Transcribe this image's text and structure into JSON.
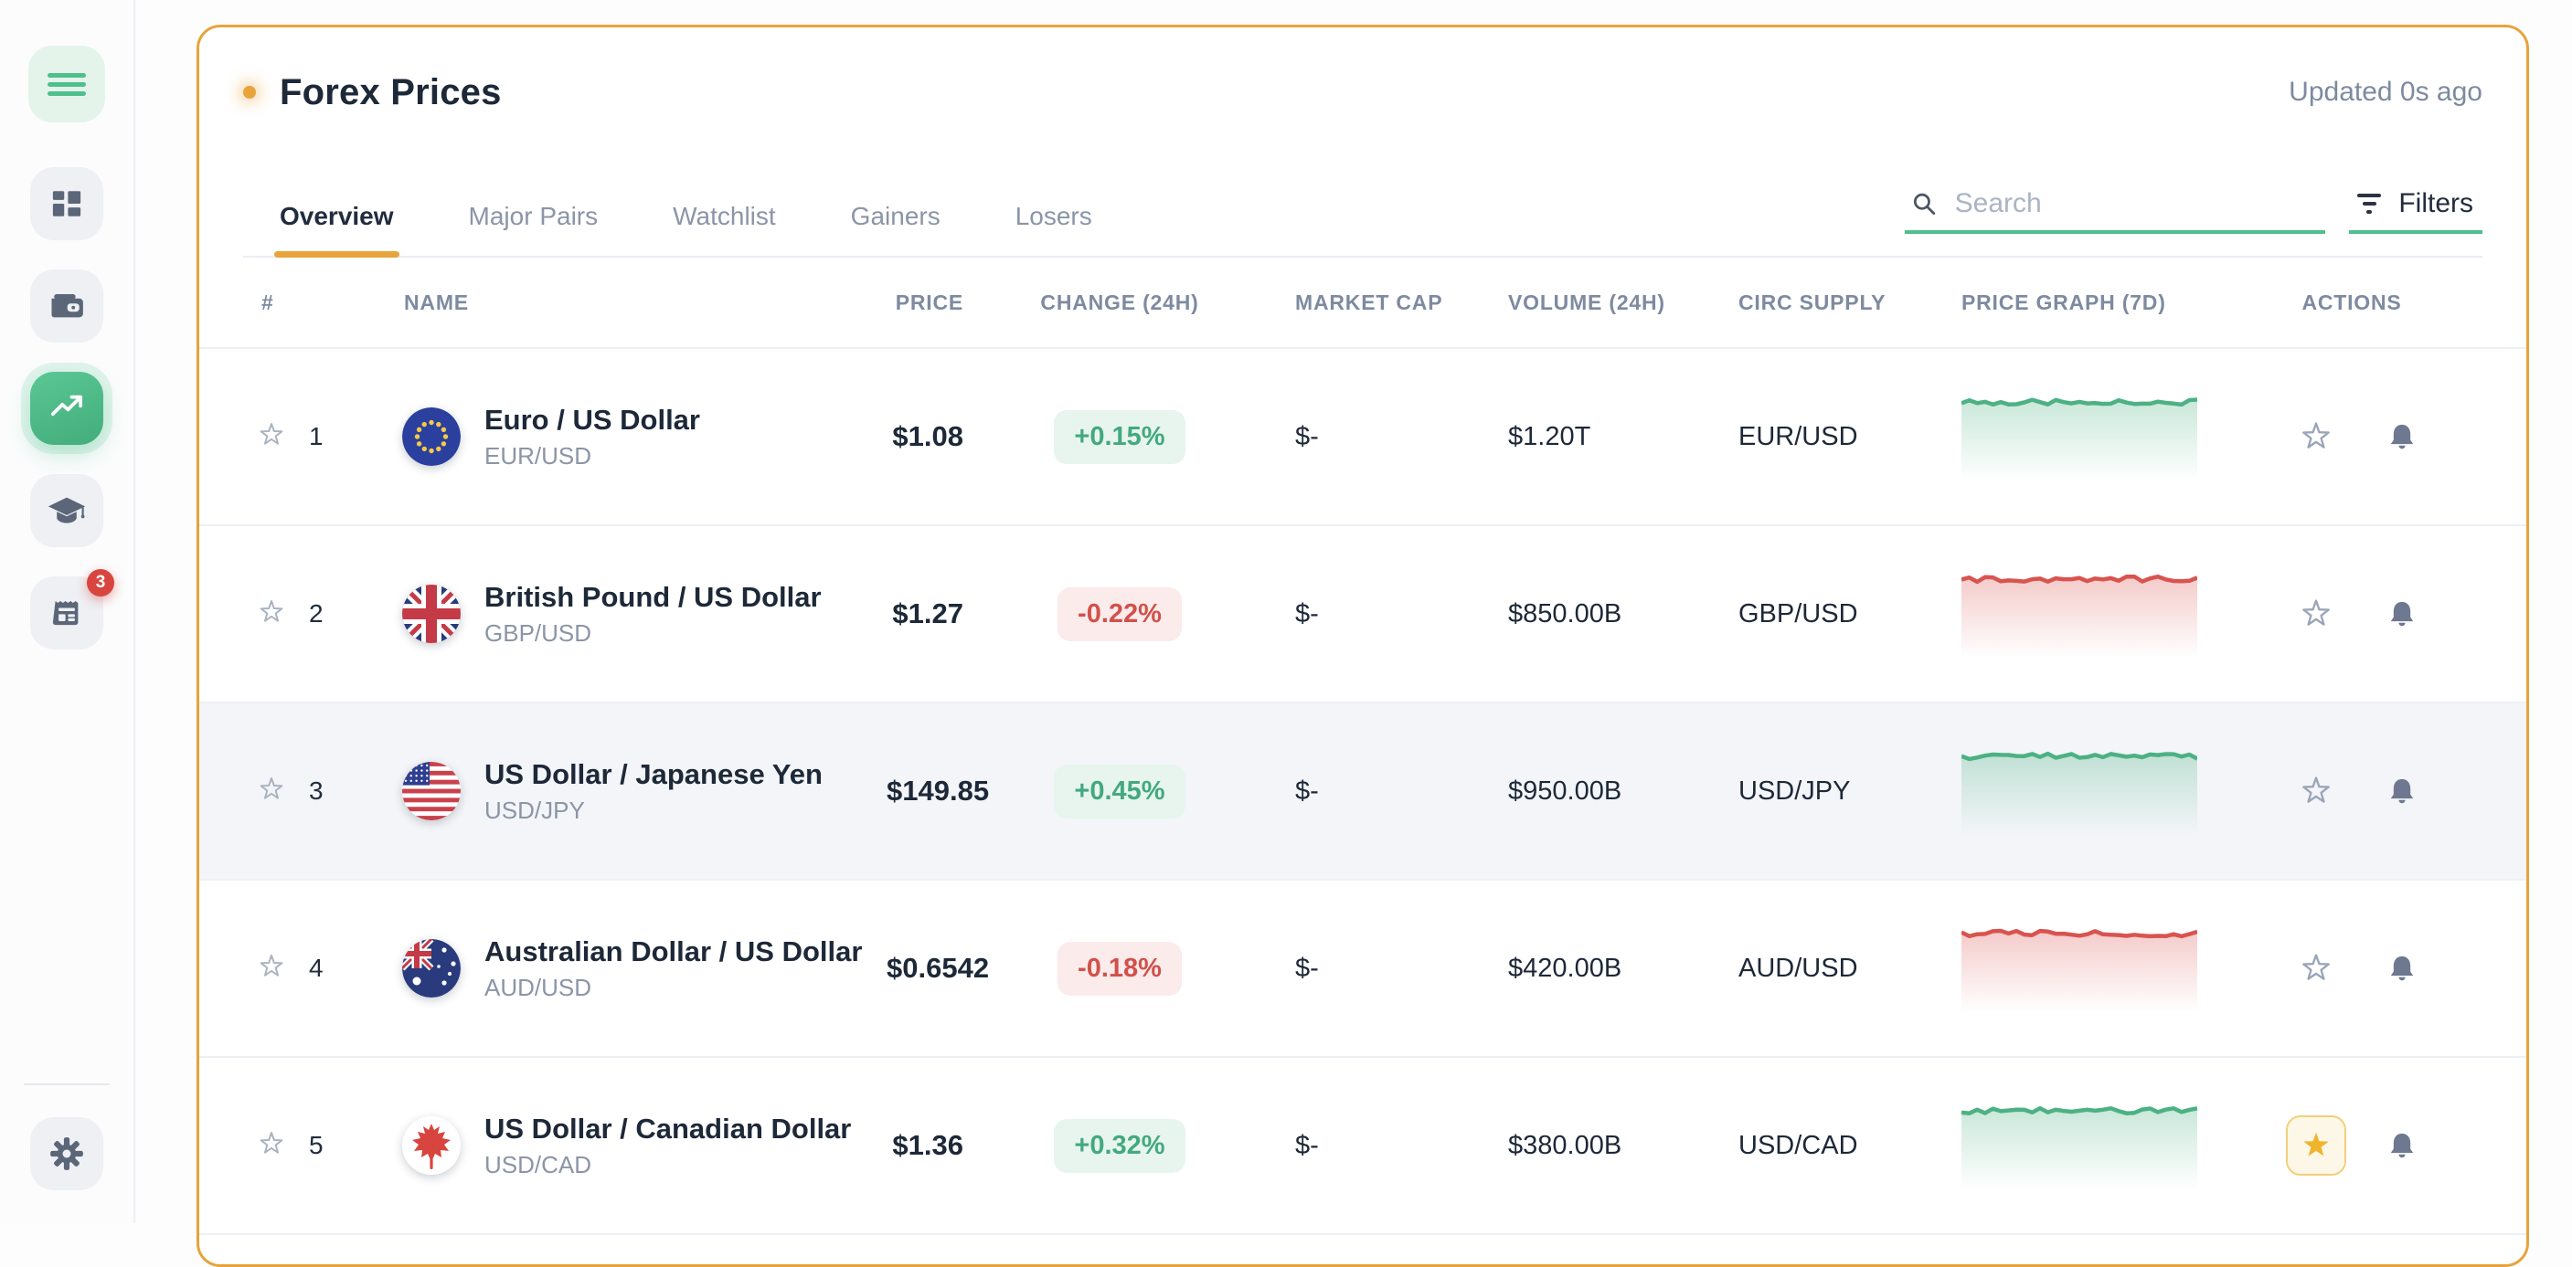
{
  "sidebar": {
    "menu": {
      "icon": "hamburger-icon"
    },
    "items": [
      {
        "name": "dashboard",
        "icon": "grid-icon",
        "active": false
      },
      {
        "name": "wallet",
        "icon": "wallet-icon",
        "active": false
      },
      {
        "name": "markets",
        "icon": "trending-up-icon",
        "active": true
      },
      {
        "name": "education",
        "icon": "graduation-cap-icon",
        "active": false
      },
      {
        "name": "news",
        "icon": "news-icon",
        "active": false,
        "badge": "3"
      }
    ],
    "settings": {
      "icon": "gear-icon"
    }
  },
  "panel": {
    "title": "Forex Prices",
    "updated": "Updated 0s ago",
    "tabs": [
      {
        "label": "Overview",
        "active": true
      },
      {
        "label": "Major Pairs",
        "active": false
      },
      {
        "label": "Watchlist",
        "active": false
      },
      {
        "label": "Gainers",
        "active": false
      },
      {
        "label": "Losers",
        "active": false
      }
    ],
    "search_placeholder": "Search",
    "filters_label": "Filters"
  },
  "table": {
    "columns": [
      "#",
      "NAME",
      "PRICE",
      "CHANGE (24H)",
      "MARKET CAP",
      "VOLUME (24H)",
      "CIRC SUPPLY",
      "PRICE GRAPH (7D)",
      "ACTIONS"
    ],
    "rows": [
      {
        "rank": "1",
        "name": "Euro / US Dollar",
        "symbol": "EUR/USD",
        "price": "$1.08",
        "change": "+0.15%",
        "change_dir": "up",
        "market_cap": "$-",
        "volume": "$1.20T",
        "circ_supply": "EUR/USD",
        "trend": "up",
        "flag": "eu",
        "starred": false,
        "highlighted": false
      },
      {
        "rank": "2",
        "name": "British Pound / US Dollar",
        "symbol": "GBP/USD",
        "price": "$1.27",
        "change": "-0.22%",
        "change_dir": "down",
        "market_cap": "$-",
        "volume": "$850.00B",
        "circ_supply": "GBP/USD",
        "trend": "down",
        "flag": "gb",
        "starred": false,
        "highlighted": false
      },
      {
        "rank": "3",
        "name": "US Dollar / Japanese Yen",
        "symbol": "USD/JPY",
        "price": "$149.85",
        "change": "+0.45%",
        "change_dir": "up",
        "market_cap": "$-",
        "volume": "$950.00B",
        "circ_supply": "USD/JPY",
        "trend": "up",
        "flag": "us",
        "starred": false,
        "highlighted": true
      },
      {
        "rank": "4",
        "name": "Australian Dollar / US Dollar",
        "symbol": "AUD/USD",
        "price": "$0.6542",
        "change": "-0.18%",
        "change_dir": "down",
        "market_cap": "$-",
        "volume": "$420.00B",
        "circ_supply": "AUD/USD",
        "trend": "down",
        "flag": "au",
        "starred": false,
        "highlighted": false
      },
      {
        "rank": "5",
        "name": "US Dollar / Canadian Dollar",
        "symbol": "USD/CAD",
        "price": "$1.36",
        "change": "+0.32%",
        "change_dir": "up",
        "market_cap": "$-",
        "volume": "$380.00B",
        "circ_supply": "USD/CAD",
        "trend": "up",
        "flag": "ca",
        "starred": true,
        "highlighted": false
      }
    ]
  },
  "colors": {
    "accent": "#E8A33B",
    "green": "#4FBF8B",
    "positive": "#43A97E",
    "positive_bg": "#E7F5EE",
    "negative": "#D2504B",
    "negative_bg": "#FBEBEB",
    "spark_up": "#4CB183",
    "spark_down": "#D9534F",
    "badge": "#D8453E",
    "star_active": "#F0B42C"
  }
}
